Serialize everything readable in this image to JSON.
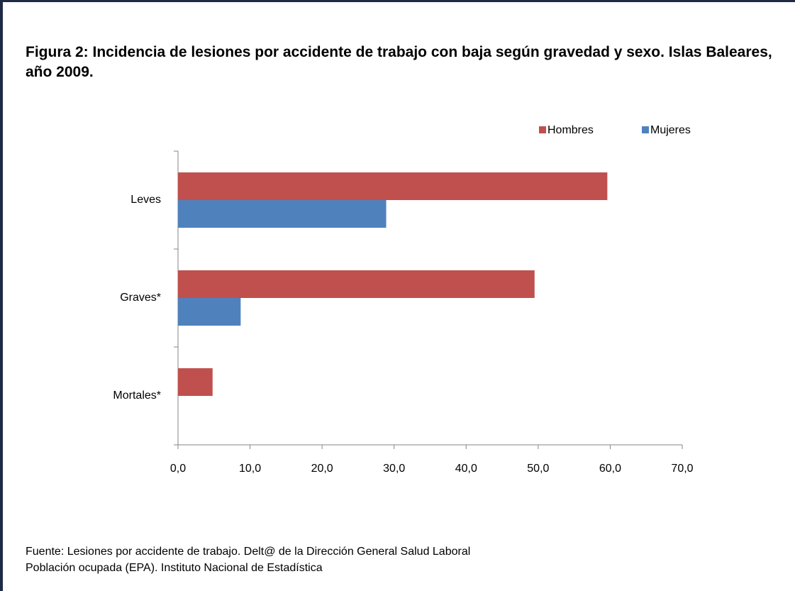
{
  "chart_data": {
    "type": "bar",
    "orientation": "horizontal",
    "title": "Figura 2: Incidencia de lesiones por accidente de trabajo con baja según gravedad y sexo. Islas Baleares, año 2009.",
    "categories": [
      "Leves",
      "Graves*",
      "Mortales*"
    ],
    "series": [
      {
        "name": "Hombres",
        "color": "#c0504d",
        "values": [
          59.6,
          49.5,
          4.8
        ]
      },
      {
        "name": "Mujeres",
        "color": "#4f81bd",
        "values": [
          28.9,
          8.7,
          0
        ]
      }
    ],
    "xlim": [
      0,
      70
    ],
    "xticks": [
      {
        "value": 0,
        "label": "0,0"
      },
      {
        "value": 10,
        "label": "10,0"
      },
      {
        "value": 20,
        "label": "20,0"
      },
      {
        "value": 30,
        "label": "30,0"
      },
      {
        "value": 40,
        "label": "40,0"
      },
      {
        "value": 50,
        "label": "50,0"
      },
      {
        "value": 60,
        "label": "60,0"
      },
      {
        "value": 70,
        "label": "70,0"
      }
    ],
    "legend": "top-right",
    "source": [
      "Fuente: Lesiones por accidente de trabajo. Delt@ de la  Dirección General Salud Laboral",
      "Población ocupada (EPA). Instituto Nacional de Estadística"
    ]
  }
}
